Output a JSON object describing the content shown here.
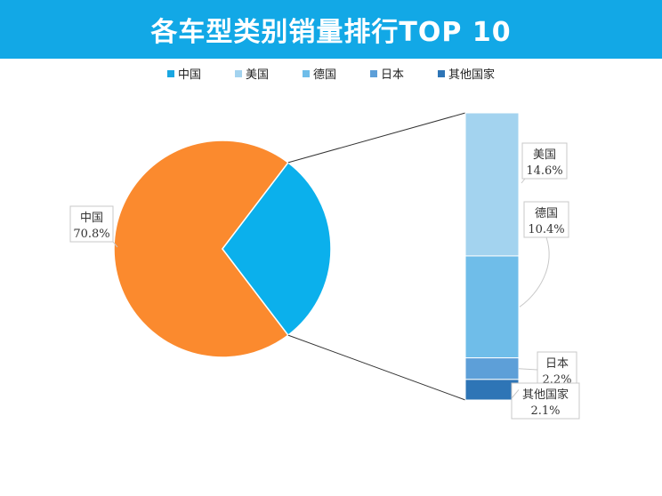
{
  "title": "各车型类别销量排行TOP 10",
  "colors": {
    "banner": "#12a8e6",
    "中国": "#fb8a2e",
    "others_slice": "#0bb0ec",
    "美国": "#a3d3ef",
    "德国": "#6fbde9",
    "日本": "#5d9fd8",
    "其他国家": "#2e75b6"
  },
  "legend": [
    {
      "name": "中国",
      "color": "#1aa7e2"
    },
    {
      "name": "美国",
      "color": "#a3d3ef"
    },
    {
      "name": "德国",
      "color": "#6fbde9"
    },
    {
      "name": "日本",
      "color": "#5d9fd8"
    },
    {
      "name": "其他国家",
      "color": "#2e75b6"
    }
  ],
  "chart_data": {
    "type": "pie",
    "subtype": "pie-of-bar",
    "title": "各车型类别销量排行TOP 10",
    "legend_position": "top",
    "categories": [
      "中国",
      "美国",
      "德国",
      "日本",
      "其他国家"
    ],
    "values": [
      70.8,
      14.6,
      10.4,
      2.2,
      2.1
    ],
    "labels": [
      "中国\n70.8%",
      "美国\n14.6%",
      "德国\n10.4%",
      "日本\n2.2%",
      "其他国家\n2.1%"
    ],
    "main_pie": [
      "中国"
    ],
    "bar_breakdown": [
      "美国",
      "德国",
      "日本",
      "其他国家"
    ]
  }
}
